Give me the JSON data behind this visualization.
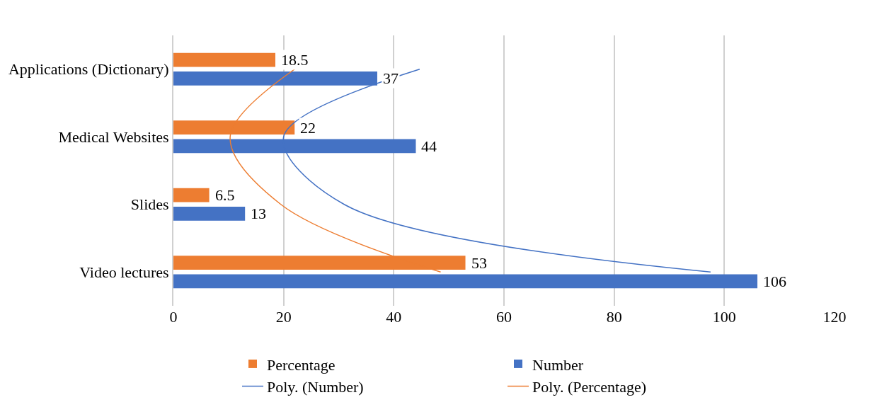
{
  "chart_data": {
    "type": "bar",
    "orientation": "horizontal",
    "categories": [
      "Applications (Dictionary)",
      "Medical Websites",
      "Slides",
      "Video lectures"
    ],
    "series": [
      {
        "name": "Percentage",
        "color": "#ed7d31",
        "values": [
          18.5,
          22,
          6.5,
          53
        ],
        "value_labels": [
          "18.5",
          "22",
          "6.5",
          "53"
        ]
      },
      {
        "name": "Number",
        "color": "#4472c4",
        "values": [
          37,
          44,
          13,
          106
        ],
        "value_labels": [
          "37",
          "44",
          "13",
          "106"
        ]
      },
      {
        "name": "Poly. (Number)",
        "type": "line",
        "color": "#4472c4",
        "values": [
          44.7,
          20,
          31,
          97.5
        ]
      },
      {
        "name": "Poly. (Percentage)",
        "type": "line",
        "color": "#ed7d31",
        "values": [
          22,
          10.3,
          19.5,
          48.5
        ]
      }
    ],
    "xlim": [
      0,
      120
    ],
    "xticks": [
      0,
      20,
      40,
      60,
      80,
      100,
      120
    ],
    "grid": "x",
    "legend": "bottom",
    "marker": "none",
    "line_style": "solid"
  }
}
